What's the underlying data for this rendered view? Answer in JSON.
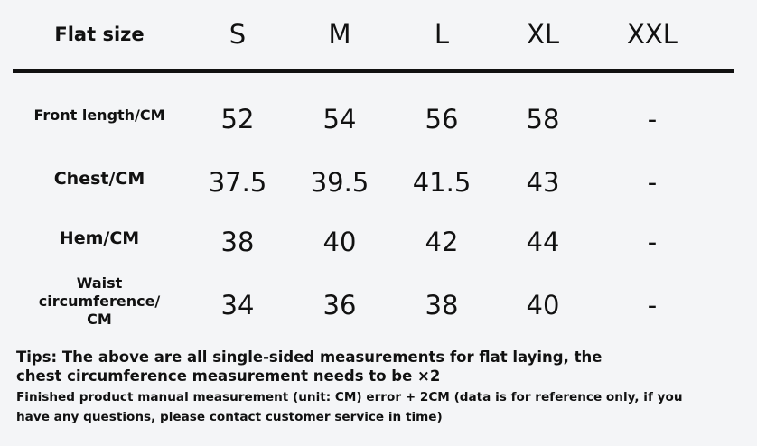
{
  "table": {
    "header": [
      "Flat size",
      "S",
      "M",
      "L",
      "XL",
      "XXL"
    ],
    "rows": [
      {
        "label": [
          "Front length/CM"
        ],
        "cells": [
          52,
          54,
          56,
          58,
          "-"
        ]
      },
      {
        "label": [
          "Chest/CM"
        ],
        "cells": [
          37.5,
          39.5,
          41.5,
          43,
          "-"
        ]
      },
      {
        "label": [
          "Hem/CM"
        ],
        "cells": [
          38,
          40,
          42,
          44,
          "-"
        ]
      },
      {
        "label": [
          "Waist",
          "circumference/",
          "CM"
        ],
        "cells": [
          34,
          36,
          38,
          40,
          "-"
        ]
      }
    ]
  },
  "tips": {
    "main": [
      "Tips: The above are all single-sided measurements for flat laying, the",
      "chest circumference measurement needs to be ×2"
    ],
    "note": [
      "Finished product manual measurement (unit: CM) error + 2CM (data is for reference only, if you",
      "have any questions, please contact customer service in time)"
    ]
  }
}
